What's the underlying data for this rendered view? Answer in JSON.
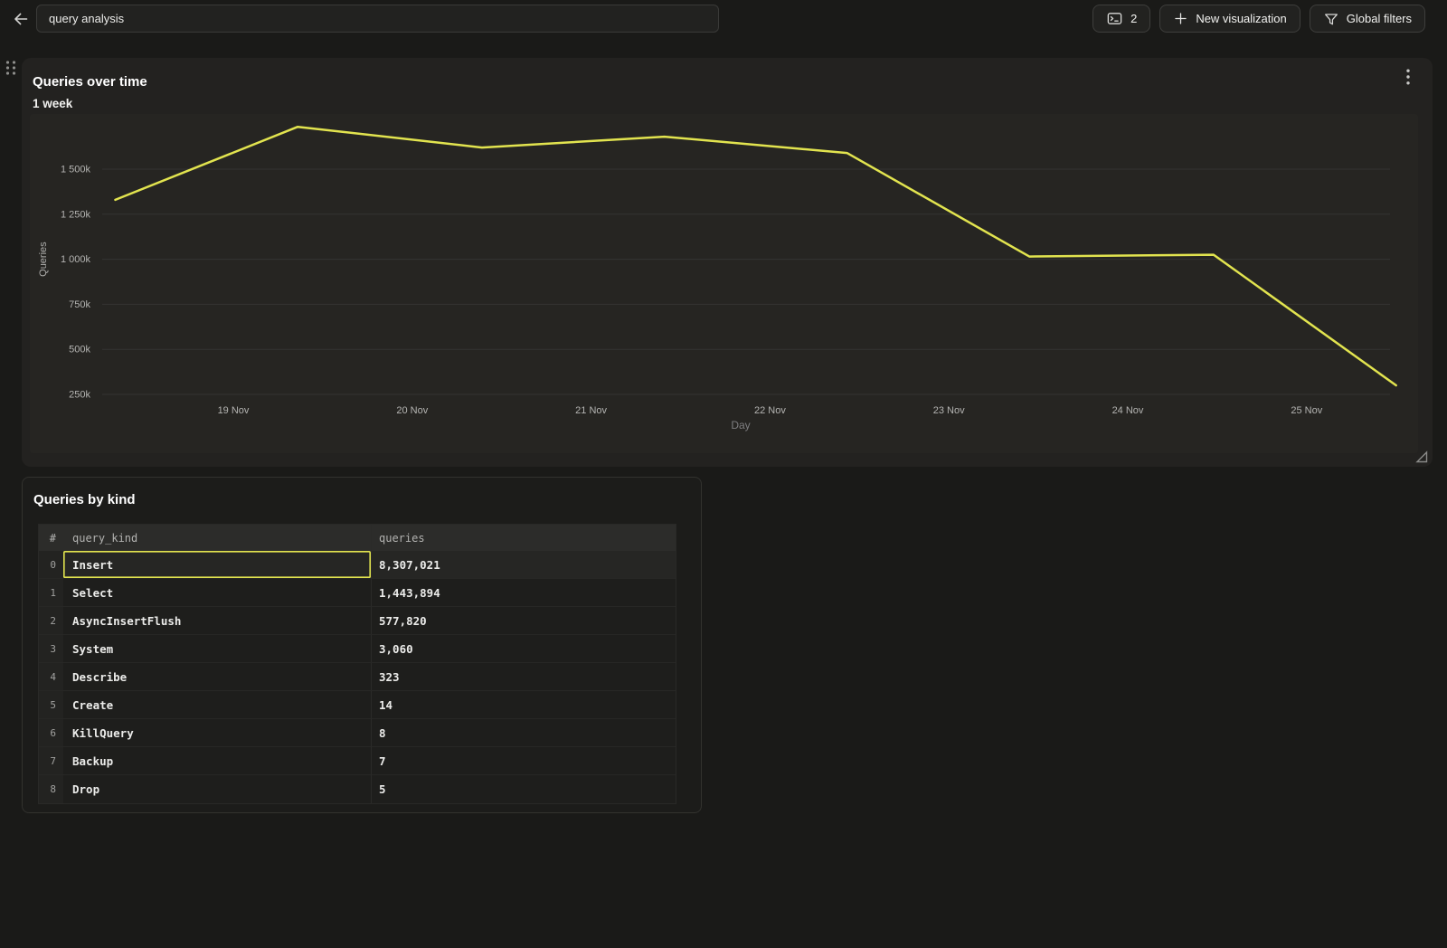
{
  "topbar": {
    "title_value": "query analysis",
    "console_count": "2",
    "new_visualization_label": "New visualization",
    "global_filters_label": "Global filters"
  },
  "chart_panel": {
    "title": "Queries over time",
    "subtitle": "1 week"
  },
  "chart_data": {
    "type": "line",
    "title": "Queries over time",
    "subtitle": "1 week",
    "xlabel": "Day",
    "ylabel": "Queries",
    "x_tick_labels": [
      "19 Nov",
      "20 Nov",
      "21 Nov",
      "22 Nov",
      "23 Nov",
      "24 Nov",
      "25 Nov"
    ],
    "y_ticks": [
      {
        "value_k": 1500,
        "label": "1 500k"
      },
      {
        "value_k": 1250,
        "label": "1 250k"
      },
      {
        "value_k": 1000,
        "label": "1 000k"
      },
      {
        "value_k": 750,
        "label": "750k"
      },
      {
        "value_k": 500,
        "label": "500k"
      },
      {
        "value_k": 250,
        "label": "250k"
      }
    ],
    "ylim_k": [
      0,
      1800
    ],
    "grid": true,
    "legend": false,
    "series": [
      {
        "name": "Queries",
        "points": [
          {
            "day_offset_from_19nov": -0.66,
            "value_k": 1330
          },
          {
            "day_offset_from_19nov": 0.36,
            "value_k": 1735
          },
          {
            "day_offset_from_19nov": 1.39,
            "value_k": 1620
          },
          {
            "day_offset_from_19nov": 2.41,
            "value_k": 1680
          },
          {
            "day_offset_from_19nov": 3.43,
            "value_k": 1590
          },
          {
            "day_offset_from_19nov": 4.45,
            "value_k": 1015
          },
          {
            "day_offset_from_19nov": 5.48,
            "value_k": 1025
          },
          {
            "day_offset_from_19nov": 6.5,
            "value_k": 300
          }
        ]
      }
    ]
  },
  "table_panel": {
    "title": "Queries by kind",
    "columns": [
      "#",
      "query_kind",
      "queries"
    ],
    "rows": [
      {
        "index": "0",
        "query_kind": "Insert",
        "queries": "8,307,021"
      },
      {
        "index": "1",
        "query_kind": "Select",
        "queries": "1,443,894"
      },
      {
        "index": "2",
        "query_kind": "AsyncInsertFlush",
        "queries": "577,820"
      },
      {
        "index": "3",
        "query_kind": "System",
        "queries": "3,060"
      },
      {
        "index": "4",
        "query_kind": "Describe",
        "queries": "323"
      },
      {
        "index": "5",
        "query_kind": "Create",
        "queries": "14"
      },
      {
        "index": "6",
        "query_kind": "KillQuery",
        "queries": "8"
      },
      {
        "index": "7",
        "query_kind": "Backup",
        "queries": "7"
      },
      {
        "index": "8",
        "query_kind": "Drop",
        "queries": "5"
      }
    ],
    "selected_cell": {
      "row": 0,
      "column": "query_kind"
    }
  },
  "colors": {
    "accent_yellow": "#e2e44f",
    "page_bg": "#1a1a18",
    "chart_panel_bg": "#232220",
    "selected_cell_border": "#e2e44f"
  }
}
